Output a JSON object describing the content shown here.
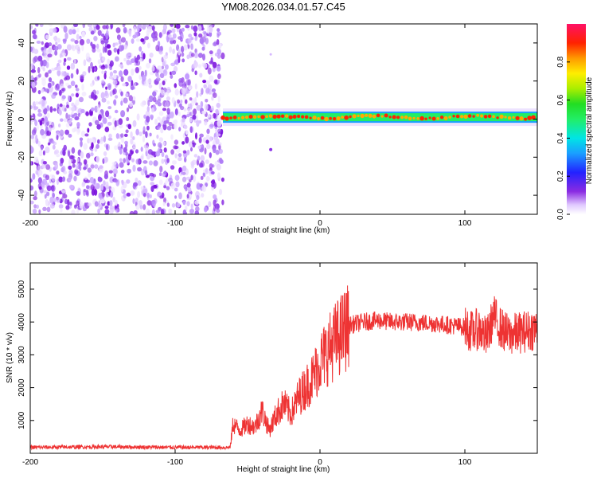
{
  "title": "YM08.2026.034.01.57.C45",
  "chart_data": [
    {
      "type": "heatmap",
      "name": "spectrogram",
      "xlabel": "Height of straight line (km)",
      "ylabel": "Frequency (Hz)",
      "xlim": [
        -200,
        150
      ],
      "ylim": [
        -50,
        50
      ],
      "xticks": [
        -200,
        -100,
        0,
        100
      ],
      "yticks": [
        -40,
        -20,
        0,
        20,
        40
      ],
      "noise_region_x": [
        -200,
        -67
      ],
      "signal_band_start_x": -67,
      "signal_band_freq_hz": 1,
      "colorbar": {
        "label": "Normalized spectral amplitude",
        "range": [
          0,
          1
        ],
        "ticks": [
          0.0,
          0.2,
          0.4,
          0.6,
          0.8
        ],
        "tick_labels": [
          "0.0",
          "0.2",
          "0.4",
          "0.6",
          "0.8"
        ]
      }
    },
    {
      "type": "line",
      "name": "snr",
      "xlabel": "Height of straight line (km)",
      "ylabel": "SNR (10 * v/v)",
      "xlim": [
        -200,
        150
      ],
      "ylim": [
        0,
        5800
      ],
      "xticks": [
        -200,
        -100,
        0,
        100
      ],
      "yticks": [
        1000,
        2000,
        3000,
        4000,
        5000
      ],
      "series": [
        {
          "name": "SNR",
          "color": "#ee3333",
          "x": [
            -200,
            -150,
            -100,
            -75,
            -62,
            -60,
            -55,
            -50,
            -45,
            -40,
            -35,
            -30,
            -25,
            -20,
            -15,
            -10,
            -5,
            0,
            10,
            20,
            30,
            40,
            50,
            60,
            70,
            80,
            90,
            100,
            105,
            110,
            115,
            120,
            125,
            130,
            140,
            150
          ],
          "y": [
            180,
            200,
            180,
            180,
            180,
            900,
            700,
            900,
            800,
            1300,
            700,
            1200,
            1500,
            1200,
            1700,
            2000,
            2300,
            2800,
            3400,
            3900,
            4000,
            4050,
            4000,
            4000,
            3980,
            3950,
            3900,
            3850,
            3700,
            3800,
            3500,
            4200,
            3800,
            3600,
            3700,
            3800
          ]
        }
      ]
    }
  ]
}
